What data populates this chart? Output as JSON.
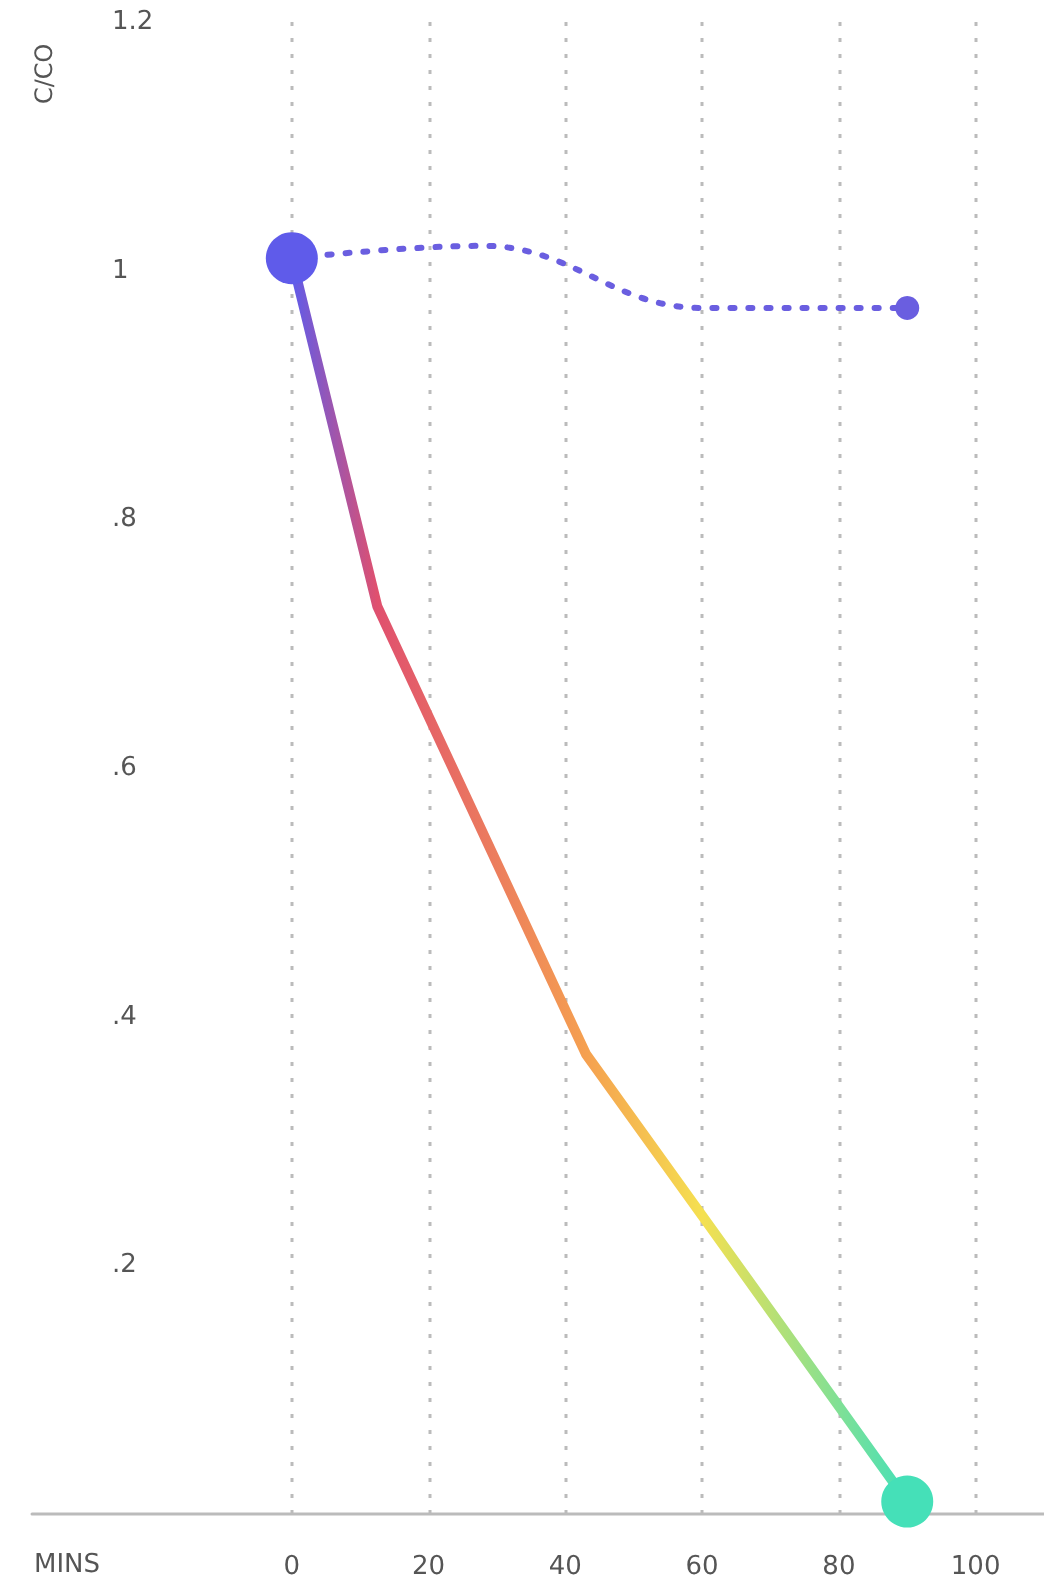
{
  "chart_data": {
    "type": "line",
    "xlabel": "MINS",
    "ylabel": "C/CO",
    "xlim": [
      -38,
      110
    ],
    "xticks": [
      0,
      20,
      40,
      60,
      80,
      100
    ],
    "ylim": [
      0,
      1.2
    ],
    "yticks": [
      {
        "value": 0.2,
        "label": ".2"
      },
      {
        "value": 0.4,
        "label": ".4"
      },
      {
        "value": 0.6,
        "label": ".6"
      },
      {
        "value": 0.8,
        "label": ".8"
      },
      1,
      1.2
    ],
    "grid": "x",
    "series": [
      {
        "x": [
          0,
          12.5,
          43,
          60,
          90
        ],
        "values": [
          1.01,
          0.73,
          0.37,
          0.24,
          0.01
        ],
        "colors": [
          "#5f5bea",
          "#e0506e",
          "#f5a050",
          "#f5e050",
          "#45e0b8"
        ],
        "line_style": "solid"
      },
      {
        "x": [
          0,
          28,
          60,
          90
        ],
        "values": [
          1.01,
          1.02,
          0.97,
          0.97
        ],
        "color": "#6a5ee0",
        "line_style": "dotted"
      }
    ]
  }
}
